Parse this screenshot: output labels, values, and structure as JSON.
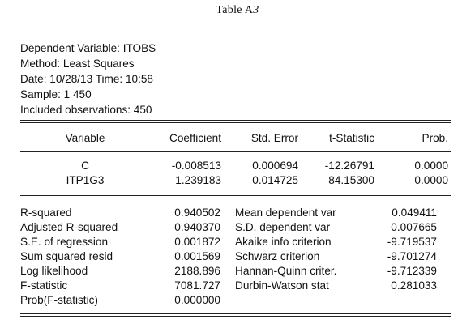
{
  "caption": {
    "prefix": "Table A",
    "number": "3"
  },
  "meta": [
    "Dependent Variable: ITOBS",
    "Method: Least Squares",
    "Date: 10/28/13   Time: 10:58",
    "Sample: 1 450",
    "Included observations: 450"
  ],
  "columns": [
    "Variable",
    "Coefficient",
    "Std. Error",
    "t-Statistic",
    "Prob."
  ],
  "coefficients": [
    {
      "variable": "C",
      "coefficient": "-0.008513",
      "std_error": "0.000694",
      "t_statistic": "-12.26791",
      "prob": "0.0000"
    },
    {
      "variable": "ITP1G3",
      "coefficient": "1.239183",
      "std_error": "0.014725",
      "t_statistic": "84.15300",
      "prob": "0.0000"
    }
  ],
  "stats_left": [
    {
      "label": "R-squared",
      "value": "0.940502"
    },
    {
      "label": "Adjusted R-squared",
      "value": "0.940370"
    },
    {
      "label": "S.E. of regression",
      "value": "0.001872"
    },
    {
      "label": "Sum squared resid",
      "value": "0.001569"
    },
    {
      "label": "Log likelihood",
      "value": "2188.896"
    },
    {
      "label": "F-statistic",
      "value": "7081.727"
    },
    {
      "label": "Prob(F-statistic)",
      "value": "0.000000"
    }
  ],
  "stats_right": [
    {
      "label": "Mean dependent var",
      "value": "0.049411"
    },
    {
      "label": "S.D. dependent var",
      "value": "0.007665"
    },
    {
      "label": "Akaike info criterion",
      "value": "-9.719537"
    },
    {
      "label": "Schwarz criterion",
      "value": "-9.701274"
    },
    {
      "label": "Hannan-Quinn criter.",
      "value": "-9.712339"
    },
    {
      "label": "Durbin-Watson stat",
      "value": "0.281033"
    }
  ]
}
